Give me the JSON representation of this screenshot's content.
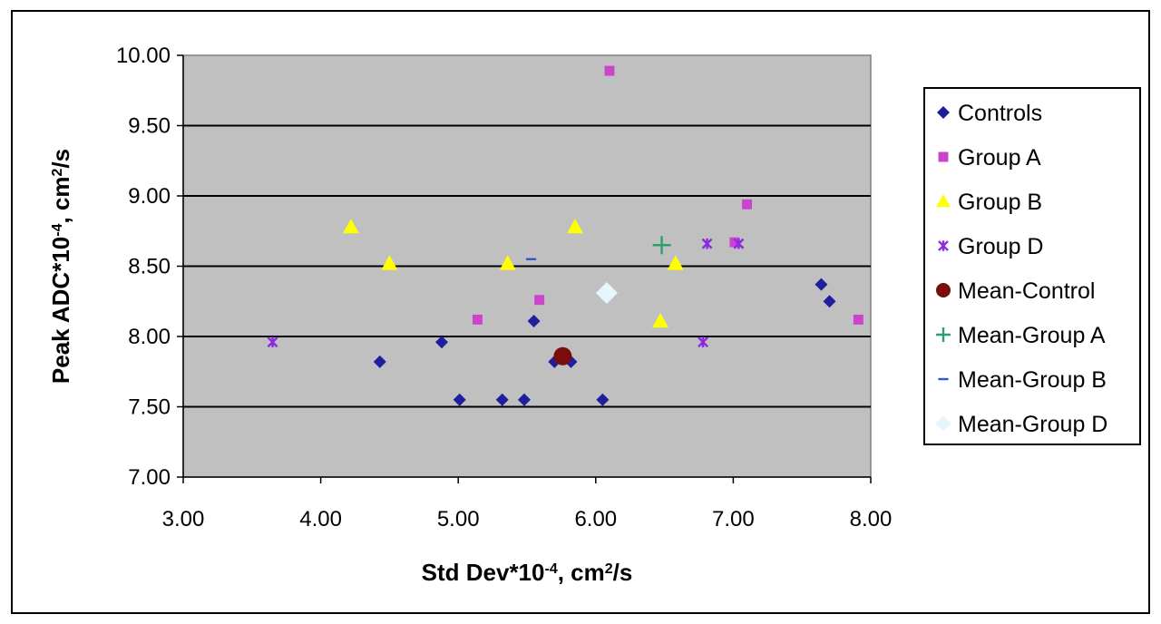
{
  "chart_data": {
    "type": "scatter",
    "title": "",
    "xlabel": {
      "prefix": "Std Dev*10",
      "exp": "-4",
      "mid": ", cm",
      "exp2": "2",
      "suffix": "/s"
    },
    "ylabel": {
      "prefix": "Peak ADC*10",
      "exp": "-4",
      "mid": ", cm",
      "exp2": "2",
      "suffix": "/s"
    },
    "xlim": [
      3.0,
      8.0
    ],
    "ylim": [
      7.0,
      10.0
    ],
    "x_ticks": [
      "3.00",
      "4.00",
      "5.00",
      "6.00",
      "7.00",
      "8.00"
    ],
    "y_ticks": [
      "7.00",
      "7.50",
      "8.00",
      "8.50",
      "9.00",
      "9.50",
      "10.00"
    ],
    "grid": "horizontal",
    "plot_background": "#c0c0c0",
    "legend_position": "right",
    "series": [
      {
        "name": "Controls",
        "marker": "diamond",
        "color": "#1f1f9e",
        "points": [
          [
            4.43,
            7.82
          ],
          [
            4.88,
            7.96
          ],
          [
            5.01,
            7.55
          ],
          [
            5.32,
            7.55
          ],
          [
            5.48,
            7.55
          ],
          [
            5.55,
            8.11
          ],
          [
            5.7,
            7.82
          ],
          [
            5.82,
            7.82
          ],
          [
            6.05,
            7.55
          ],
          [
            7.64,
            8.37
          ],
          [
            7.7,
            8.25
          ]
        ]
      },
      {
        "name": "Group A",
        "marker": "square",
        "color": "#cc44cc",
        "points": [
          [
            5.14,
            8.12
          ],
          [
            5.59,
            8.26
          ],
          [
            6.1,
            9.89
          ],
          [
            7.01,
            8.67
          ],
          [
            7.1,
            8.94
          ],
          [
            7.91,
            8.12
          ]
        ]
      },
      {
        "name": "Group B",
        "marker": "triangle",
        "color": "#ffff00",
        "points": [
          [
            4.22,
            8.78
          ],
          [
            4.5,
            8.52
          ],
          [
            5.36,
            8.52
          ],
          [
            5.85,
            8.78
          ],
          [
            6.47,
            8.11
          ],
          [
            6.58,
            8.52
          ]
        ]
      },
      {
        "name": "Group D",
        "marker": "star",
        "color": "#8a2be2",
        "points": [
          [
            3.65,
            7.96
          ],
          [
            6.78,
            7.96
          ],
          [
            6.81,
            8.66
          ],
          [
            7.04,
            8.66
          ]
        ]
      },
      {
        "name": "Mean-Control",
        "marker": "circle",
        "color": "#7a0c0c",
        "points": [
          [
            5.76,
            7.86
          ]
        ]
      },
      {
        "name": "Mean-Group A",
        "marker": "plus",
        "color": "#2e9e6e",
        "points": [
          [
            6.48,
            8.65
          ]
        ]
      },
      {
        "name": "Mean-Group B",
        "marker": "dash",
        "color": "#3355cc",
        "points": [
          [
            5.53,
            8.55
          ]
        ]
      },
      {
        "name": "Mean-Group D",
        "marker": "diamond",
        "color": "#e6f7fb",
        "points": [
          [
            6.08,
            8.31
          ]
        ]
      }
    ]
  }
}
